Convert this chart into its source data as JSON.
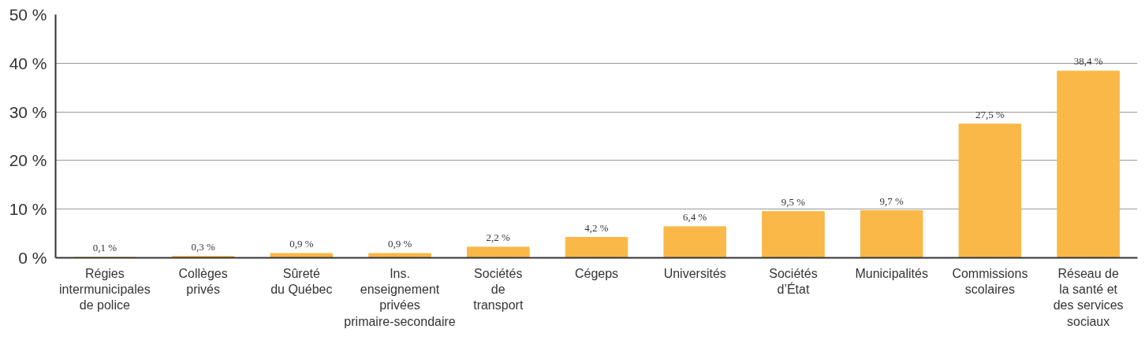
{
  "chart_data": {
    "type": "bar",
    "categories": [
      "Régies\nintermunicipales\nde police",
      "Collèges\nprivés",
      "Sûreté\ndu Québec",
      "Ins.\nenseignement\nprivées\nprimaire-secondaire",
      "Sociétés\nde\ntransport",
      "Cégeps",
      "Universités",
      "Sociétés\nd’État",
      "Municipalités",
      "Commissions\nscolaires",
      "Réseau de\nla santé et\ndes services\nsociaux"
    ],
    "values": [
      0.1,
      0.3,
      0.9,
      0.9,
      2.2,
      4.2,
      6.4,
      9.5,
      9.7,
      27.5,
      38.4
    ],
    "value_labels": [
      "0,1 %",
      "0,3 %",
      "0,9 %",
      "0,9 %",
      "2,2 %",
      "4,2 %",
      "6,4 %",
      "9,5 %",
      "9,7 %",
      "27,5 %",
      "38,4 %"
    ],
    "color": "#f9b847",
    "ylim": [
      0,
      50
    ],
    "yticks": [
      {
        "value": 0,
        "label": "0 %"
      },
      {
        "value": 10,
        "label": "10 %"
      },
      {
        "value": 20,
        "label": "20 %"
      },
      {
        "value": 30,
        "label": "30 %"
      },
      {
        "value": 40,
        "label": "40 %"
      },
      {
        "value": 50,
        "label": "50 %"
      }
    ],
    "grid": "y"
  }
}
